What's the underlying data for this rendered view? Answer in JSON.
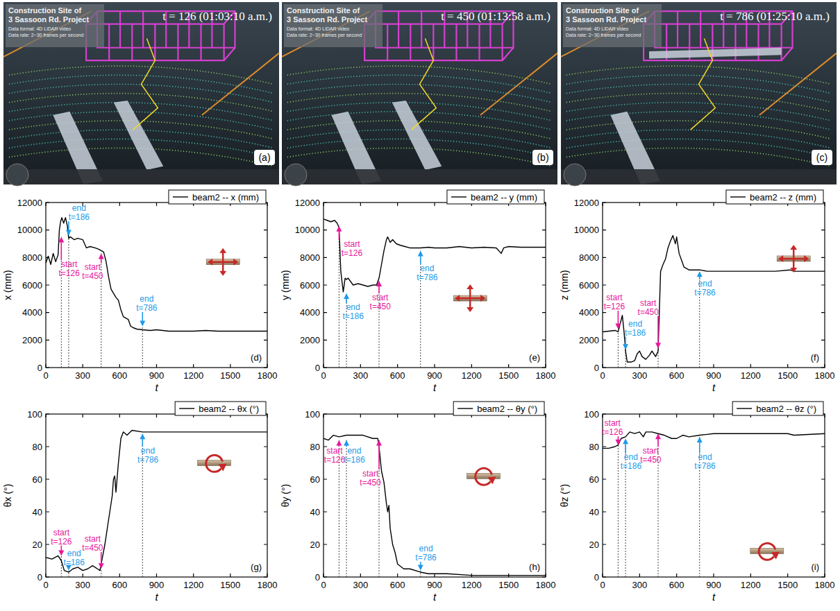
{
  "screenshots": [
    {
      "title": "Construction Site of",
      "subtitle": "3 Sassoon Rd. Project",
      "info": [
        "Data format: 4D LiDAR video",
        "Data rate: 2~30 frames per second"
      ],
      "time": "t = 126 (01:03:10 a.m.)",
      "letter": "(a)"
    },
    {
      "title": "Construction Site of",
      "subtitle": "3 Sassoon Rd. Project",
      "info": [
        "Data format: 4D LiDAR video",
        "Data rate: 2~30 frames per second"
      ],
      "time": "t = 450 (01:13:58 a.m.)",
      "letter": "(b)"
    },
    {
      "title": "Construction Site of",
      "subtitle": "3 Sassoon Rd. Project",
      "info": [
        "Data format: 4D LiDAR video",
        "Data rate: 2~30 frames per second"
      ],
      "time": "t = 786 (01:25:10 a.m.)",
      "letter": "(c)"
    }
  ],
  "chart_data": [
    {
      "type": "line",
      "panel": "(d)",
      "xlabel": "t",
      "ylabel": "x (mm)",
      "x": [
        0,
        20,
        40,
        60,
        80,
        100,
        110,
        120,
        130,
        145,
        160,
        175,
        186,
        200,
        230,
        260,
        300,
        330,
        360,
        400,
        430,
        450,
        470,
        490,
        510,
        530,
        550,
        570,
        590,
        610,
        630,
        650,
        670,
        690,
        710,
        740,
        786,
        850,
        900,
        1000,
        1100,
        1200,
        1300,
        1400,
        1500,
        1600,
        1700,
        1800
      ],
      "series": [
        {
          "name": "beam2 -- x (mm)",
          "color": "#000000",
          "values": [
            7600,
            8100,
            7500,
            8300,
            7700,
            8200,
            10000,
            10600,
            10900,
            10500,
            10900,
            10300,
            9400,
            9500,
            9300,
            9400,
            9300,
            8700,
            8800,
            8700,
            8600,
            8500,
            8400,
            7700,
            6600,
            5700,
            5400,
            5100,
            4900,
            4200,
            3700,
            3600,
            3500,
            3000,
            2900,
            2800,
            2750,
            2700,
            2750,
            2650,
            2650,
            2650,
            2700,
            2650,
            2650,
            2650,
            2650,
            2650
          ]
        }
      ],
      "xlim": [
        0,
        1800
      ],
      "ylim": [
        0,
        12000
      ],
      "xticks": [
        0,
        300,
        600,
        900,
        1200,
        1500,
        1800
      ],
      "yticks": [
        0,
        2000,
        4000,
        6000,
        8000,
        10000,
        12000
      ],
      "legend": "upper right",
      "annotations": [
        {
          "label": "start",
          "text": "t=126",
          "x": 126,
          "y": 9500,
          "x_text": 190,
          "y_text": 7800,
          "color": "#e8179b"
        },
        {
          "label": "end",
          "text": "t=186",
          "x": 186,
          "y": 9600,
          "x_text": 270,
          "y_text": 11900,
          "color": "#1e9be8"
        },
        {
          "label": "start",
          "text": "t=450",
          "x": 450,
          "y": 8300,
          "x_text": 380,
          "y_text": 7600,
          "color": "#e8179b"
        },
        {
          "label": "end",
          "text": "t=786",
          "x": 786,
          "y": 3000,
          "x_text": 820,
          "y_text": 5300,
          "color": "#1e9be8"
        }
      ]
    },
    {
      "type": "line",
      "panel": "(e)",
      "xlabel": "t",
      "ylabel": "y (mm)",
      "x": [
        0,
        30,
        60,
        90,
        110,
        126,
        140,
        160,
        175,
        186,
        200,
        240,
        280,
        320,
        360,
        400,
        430,
        450,
        470,
        490,
        510,
        520,
        540,
        560,
        590,
        620,
        660,
        700,
        786,
        850,
        900,
        1000,
        1100,
        1200,
        1300,
        1400,
        1440,
        1460,
        1500,
        1600,
        1700,
        1800
      ],
      "series": [
        {
          "name": "beam2 -- y (mm)",
          "color": "#000000",
          "values": [
            10800,
            10700,
            10600,
            10700,
            10500,
            10200,
            7000,
            5500,
            6500,
            6400,
            6500,
            6000,
            6100,
            6000,
            5900,
            6000,
            6000,
            6500,
            7500,
            8500,
            9300,
            9500,
            9100,
            9300,
            9000,
            8900,
            8800,
            8700,
            8700,
            8750,
            8700,
            8700,
            8800,
            8700,
            8750,
            8700,
            8300,
            8700,
            8800,
            8750,
            8750,
            8750
          ]
        }
      ],
      "xlim": [
        0,
        1800
      ],
      "ylim": [
        0,
        12000
      ],
      "xticks": [
        0,
        300,
        600,
        900,
        1200,
        1500,
        1800
      ],
      "yticks": [
        0,
        2000,
        4000,
        6000,
        8000,
        10000,
        12000
      ],
      "legend": "upper right",
      "annotations": [
        {
          "label": "start",
          "text": "t=126",
          "x": 126,
          "y": 10300,
          "x_text": 230,
          "y_text": 9300,
          "color": "#e8179b"
        },
        {
          "label": "end",
          "text": "t=186",
          "x": 186,
          "y": 5400,
          "x_text": 240,
          "y_text": 4700,
          "color": "#1e9be8"
        },
        {
          "label": "start",
          "text": "t=450",
          "x": 450,
          "y": 6300,
          "x_text": 460,
          "y_text": 5400,
          "color": "#e8179b"
        },
        {
          "label": "end",
          "text": "t=786",
          "x": 786,
          "y": 8500,
          "x_text": 840,
          "y_text": 7500,
          "color": "#1e9be8"
        }
      ]
    },
    {
      "type": "line",
      "panel": "(f)",
      "xlabel": "t",
      "ylabel": "z (mm)",
      "x": [
        0,
        50,
        100,
        126,
        140,
        160,
        175,
        186,
        200,
        230,
        260,
        280,
        300,
        320,
        350,
        380,
        400,
        430,
        450,
        470,
        490,
        510,
        530,
        550,
        570,
        590,
        600,
        620,
        640,
        660,
        700,
        786,
        850,
        1000,
        1200,
        1400,
        1520,
        1550,
        1800
      ],
      "series": [
        {
          "name": "beam2 -- z (mm)",
          "color": "#000000",
          "values": [
            2600,
            2650,
            2700,
            2600,
            3100,
            3800,
            2500,
            1200,
            400,
            400,
            500,
            1000,
            1200,
            800,
            600,
            900,
            1200,
            800,
            1200,
            7000,
            7500,
            7900,
            8700,
            9200,
            9600,
            9000,
            9500,
            8300,
            7800,
            7300,
            7100,
            7100,
            7000,
            7000,
            7000,
            7000,
            7100,
            7000,
            7000
          ]
        }
      ],
      "xlim": [
        0,
        1800
      ],
      "ylim": [
        0,
        12000
      ],
      "xticks": [
        0,
        300,
        600,
        900,
        1200,
        1500,
        1800
      ],
      "yticks": [
        0,
        2000,
        4000,
        6000,
        8000,
        10000,
        12000
      ],
      "legend": "upper right",
      "annotations": [
        {
          "label": "start",
          "text": "t=126",
          "x": 126,
          "y": 2800,
          "x_text": 95,
          "y_text": 5400,
          "color": "#e8179b"
        },
        {
          "label": "end",
          "text": "t=186",
          "x": 186,
          "y": 1300,
          "x_text": 265,
          "y_text": 3500,
          "color": "#1e9be8"
        },
        {
          "label": "start",
          "text": "t=450",
          "x": 450,
          "y": 1400,
          "x_text": 370,
          "y_text": 5000,
          "color": "#e8179b"
        },
        {
          "label": "end",
          "text": "t=786",
          "x": 786,
          "y": 7000,
          "x_text": 830,
          "y_text": 6400,
          "color": "#1e9be8"
        }
      ]
    },
    {
      "type": "line",
      "panel": "(g)",
      "xlabel": "t",
      "ylabel": "θx (°)",
      "x": [
        0,
        50,
        100,
        126,
        150,
        186,
        220,
        260,
        300,
        340,
        380,
        420,
        440,
        460,
        480,
        500,
        520,
        540,
        550,
        560,
        570,
        590,
        610,
        630,
        660,
        700,
        786,
        900,
        1100,
        1300,
        1500,
        1800
      ],
      "series": [
        {
          "name": "beam2 -- θx (°)",
          "color": "#000000",
          "values": [
            12,
            11,
            13,
            10,
            4,
            3,
            5,
            6,
            4,
            5,
            7,
            5,
            4,
            12,
            20,
            30,
            40,
            50,
            60,
            62,
            52,
            70,
            85,
            89,
            87,
            90,
            89,
            89,
            89,
            89,
            89,
            89
          ]
        }
      ],
      "xlim": [
        0,
        1800
      ],
      "ylim": [
        0,
        100
      ],
      "xticks": [
        0,
        300,
        600,
        900,
        1200,
        1500,
        1800
      ],
      "yticks": [
        0,
        20,
        40,
        60,
        80,
        100
      ],
      "legend": "upper right",
      "annotations": [
        {
          "label": "start",
          "text": "t=126",
          "x": 126,
          "y": 13,
          "x_text": 126,
          "y_text": 30,
          "color": "#e8179b"
        },
        {
          "label": "end",
          "text": "t=186",
          "x": 186,
          "y": 4,
          "x_text": 230,
          "y_text": 17,
          "color": "#1e9be8"
        },
        {
          "label": "start",
          "text": "t=450",
          "x": 450,
          "y": 5,
          "x_text": 380,
          "y_text": 26,
          "color": "#e8179b"
        },
        {
          "label": "end",
          "text": "t=786",
          "x": 786,
          "y": 88,
          "x_text": 830,
          "y_text": 80,
          "color": "#1e9be8"
        }
      ]
    },
    {
      "type": "line",
      "panel": "(h)",
      "xlabel": "t",
      "ylabel": "θy (°)",
      "x": [
        0,
        40,
        80,
        126,
        186,
        250,
        320,
        400,
        440,
        450,
        470,
        490,
        510,
        520,
        530,
        540,
        560,
        580,
        600,
        650,
        700,
        786,
        850,
        1000,
        1200,
        1500,
        1800
      ],
      "series": [
        {
          "name": "beam2 -- θy (°)",
          "color": "#000000",
          "values": [
            85,
            84,
            87,
            86,
            87,
            87,
            87,
            85,
            85,
            80,
            65,
            58,
            45,
            40,
            44,
            30,
            20,
            15,
            8,
            5,
            5,
            3,
            2,
            2,
            1,
            1,
            1
          ]
        }
      ],
      "xlim": [
        0,
        1800
      ],
      "ylim": [
        0,
        100
      ],
      "xticks": [
        0,
        300,
        600,
        900,
        1200,
        1500,
        1800
      ],
      "yticks": [
        0,
        20,
        40,
        60,
        80,
        100
      ],
      "legend": "upper right",
      "annotations": [
        {
          "label": "start",
          "text": "t=126",
          "x": 126,
          "y": 84,
          "x_text": 90,
          "y_text": 80,
          "color": "#e8179b"
        },
        {
          "label": "end",
          "text": "t=186",
          "x": 186,
          "y": 84,
          "x_text": 250,
          "y_text": 80,
          "color": "#1e9be8"
        },
        {
          "label": "start",
          "text": "t=450",
          "x": 450,
          "y": 84,
          "x_text": 380,
          "y_text": 66,
          "color": "#e8179b"
        },
        {
          "label": "end",
          "text": "t=786",
          "x": 786,
          "y": 4,
          "x_text": 830,
          "y_text": 20,
          "color": "#1e9be8"
        }
      ]
    },
    {
      "type": "line",
      "panel": "(i)",
      "xlabel": "t",
      "ylabel": "θz (°)",
      "x": [
        0,
        50,
        100,
        126,
        150,
        186,
        220,
        260,
        300,
        330,
        350,
        400,
        450,
        500,
        560,
        600,
        650,
        700,
        786,
        900,
        1000,
        1200,
        1500,
        1550,
        1800
      ],
      "series": [
        {
          "name": "beam2 -- θz (°)",
          "color": "#000000",
          "values": [
            79,
            79,
            80,
            81,
            85,
            86,
            89,
            88,
            89,
            86,
            89,
            89,
            88,
            87,
            85,
            85,
            87,
            86,
            87,
            88,
            88,
            88,
            88,
            87,
            88
          ]
        }
      ],
      "xlim": [
        0,
        1800
      ],
      "ylim": [
        0,
        100
      ],
      "xticks": [
        0,
        300,
        600,
        900,
        1200,
        1500,
        1800
      ],
      "yticks": [
        0,
        20,
        40,
        60,
        80,
        100
      ],
      "legend": "upper right",
      "annotations": [
        {
          "label": "start",
          "text": "t=126",
          "x": 126,
          "y": 81,
          "x_text": 80,
          "y_text": 97,
          "color": "#e8179b"
        },
        {
          "label": "end",
          "text": "t=186",
          "x": 186,
          "y": 85,
          "x_text": 230,
          "y_text": 76,
          "color": "#1e9be8"
        },
        {
          "label": "start",
          "text": "t=450",
          "x": 450,
          "y": 88,
          "x_text": 390,
          "y_text": 80,
          "color": "#e8179b"
        },
        {
          "label": "end",
          "text": "t=786",
          "x": 786,
          "y": 86,
          "x_text": 830,
          "y_text": 76,
          "color": "#1e9be8"
        }
      ]
    }
  ]
}
